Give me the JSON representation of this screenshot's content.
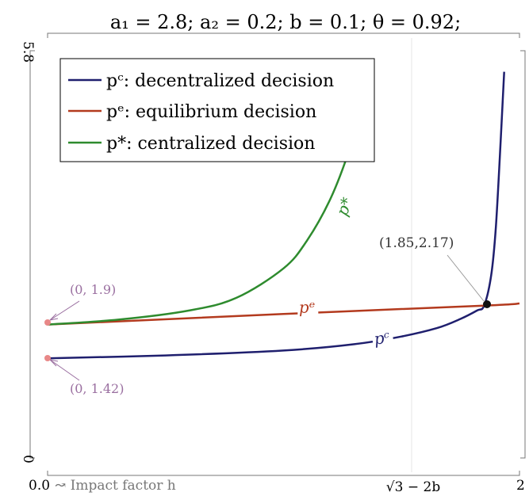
{
  "chart_data": {
    "type": "line",
    "title": "a₁ = 2.8; a₂ = 0.2; b = 0.1; θ = 0.92;",
    "xlim": [
      0,
      2
    ],
    "ylim": [
      0,
      5.8
    ],
    "x_tick_labels": [
      "0.0",
      "√3 − 2b",
      "2"
    ],
    "x_axis_label": "↝ Impact factor h",
    "y_tick_labels": [
      "0",
      "5.8"
    ],
    "grid": "vertical line at x = 1.53",
    "legend_position": "top-left",
    "series": [
      {
        "name": "pᶜ: decentralized decision",
        "curve_label": "pᶜ",
        "color": "#1f1f6e",
        "points": [
          [
            0,
            1.42
          ],
          [
            0.5,
            1.46
          ],
          [
            1.0,
            1.53
          ],
          [
            1.3,
            1.62
          ],
          [
            1.5,
            1.73
          ],
          [
            1.65,
            1.85
          ],
          [
            1.75,
            1.98
          ],
          [
            1.82,
            2.1
          ],
          [
            1.85,
            2.17
          ],
          [
            1.88,
            2.6
          ],
          [
            1.9,
            3.3
          ],
          [
            1.92,
            4.5
          ],
          [
            1.935,
            5.5
          ]
        ]
      },
      {
        "name": "pᵉ: equilibrium decision",
        "curve_label": "pᵉ",
        "color": "#b33a1e",
        "points": [
          [
            0,
            1.9
          ],
          [
            1.0,
            2.05
          ],
          [
            1.85,
            2.17
          ],
          [
            2.0,
            2.2
          ]
        ]
      },
      {
        "name": "p*: centralized decision",
        "curve_label": "p*",
        "color": "#2e8b2e",
        "points": [
          [
            0,
            1.9
          ],
          [
            0.3,
            1.97
          ],
          [
            0.6,
            2.1
          ],
          [
            0.8,
            2.28
          ],
          [
            1.0,
            2.7
          ],
          [
            1.1,
            3.1
          ],
          [
            1.2,
            3.7
          ],
          [
            1.28,
            4.4
          ],
          [
            1.33,
            5.0
          ],
          [
            1.36,
            5.55
          ]
        ]
      }
    ],
    "annotations": [
      {
        "text": "(0, 1.9)",
        "x": 0,
        "y": 1.9,
        "color": "#9a6fa0"
      },
      {
        "text": "(0, 1.42)",
        "x": 0,
        "y": 1.42,
        "color": "#9a6fa0"
      },
      {
        "text": "(1.85,2.17)",
        "x": 1.85,
        "y": 2.17,
        "color": "#333333"
      }
    ]
  }
}
